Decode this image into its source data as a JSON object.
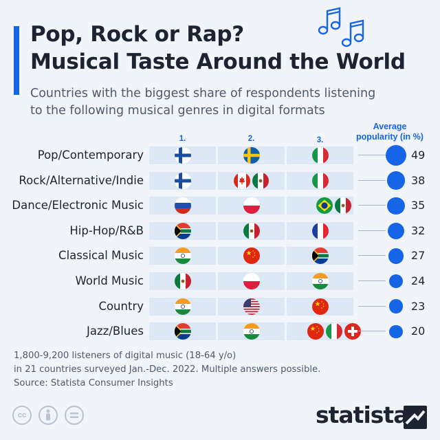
{
  "header": {
    "title_line1": "Pop, Rock or Rap?",
    "title_line2": "Musical Taste Around the World",
    "subtitle_line1": "Countries with the biggest share of respondents listening",
    "subtitle_line2": "to the following musical genres in digital formats"
  },
  "columns": {
    "rank1": "1.",
    "rank2": "2.",
    "rank3": "3.",
    "avg_line1": "Average",
    "avg_line2": "popularity (in %)"
  },
  "chart_data": {
    "type": "table",
    "columns": [
      "1.",
      "2.",
      "3.",
      "Average popularity (in %)"
    ],
    "rows": [
      {
        "genre": "Pop/Contemporary",
        "rank1": [
          "Finland"
        ],
        "rank2": [
          "Sweden"
        ],
        "rank3": [
          "Italy"
        ],
        "average": 49
      },
      {
        "genre": "Rock/Alternative/Indie",
        "rank1": [
          "Finland"
        ],
        "rank2": [
          "Canada",
          "Mexico"
        ],
        "rank3": [
          "Italy"
        ],
        "average": 38
      },
      {
        "genre": "Dance/Electronic Music",
        "rank1": [
          "Russia"
        ],
        "rank2": [
          "Poland"
        ],
        "rank3": [
          "Brazil",
          "Mexico"
        ],
        "average": 35
      },
      {
        "genre": "Hip-Hop/R&B",
        "rank1": [
          "South Africa"
        ],
        "rank2": [
          "Mexico"
        ],
        "rank3": [
          "France"
        ],
        "average": 32
      },
      {
        "genre": "Classical Music",
        "rank1": [
          "India"
        ],
        "rank2": [
          "China"
        ],
        "rank3": [
          "South Africa"
        ],
        "average": 27
      },
      {
        "genre": "World Music",
        "rank1": [
          "Mexico"
        ],
        "rank2": [
          "Poland"
        ],
        "rank3": [
          "India"
        ],
        "average": 24
      },
      {
        "genre": "Country",
        "rank1": [
          "India"
        ],
        "rank2": [
          "United States"
        ],
        "rank3": [
          "China"
        ],
        "average": 23
      },
      {
        "genre": "Jazz/Blues",
        "rank1": [
          "South Africa"
        ],
        "rank2": [
          "India"
        ],
        "rank3": [
          "China",
          "Italy",
          "Switzerland"
        ],
        "average": 20
      }
    ]
  },
  "footer": {
    "note_line1": "1,800-9,200 listeners of digital music (18-64 y/o)",
    "note_line2": "in 21 countries surveyed Jan.-Dec. 2022. Multiple answers possible.",
    "source": "Source: Statista Consumer Insights"
  },
  "brand": {
    "name": "statista"
  },
  "license_icons": [
    "cc-icon",
    "by-icon",
    "nd-icon"
  ],
  "colors": {
    "accent": "#1565e6",
    "background": "#f1f4f9",
    "cell": "#dde8f6"
  }
}
